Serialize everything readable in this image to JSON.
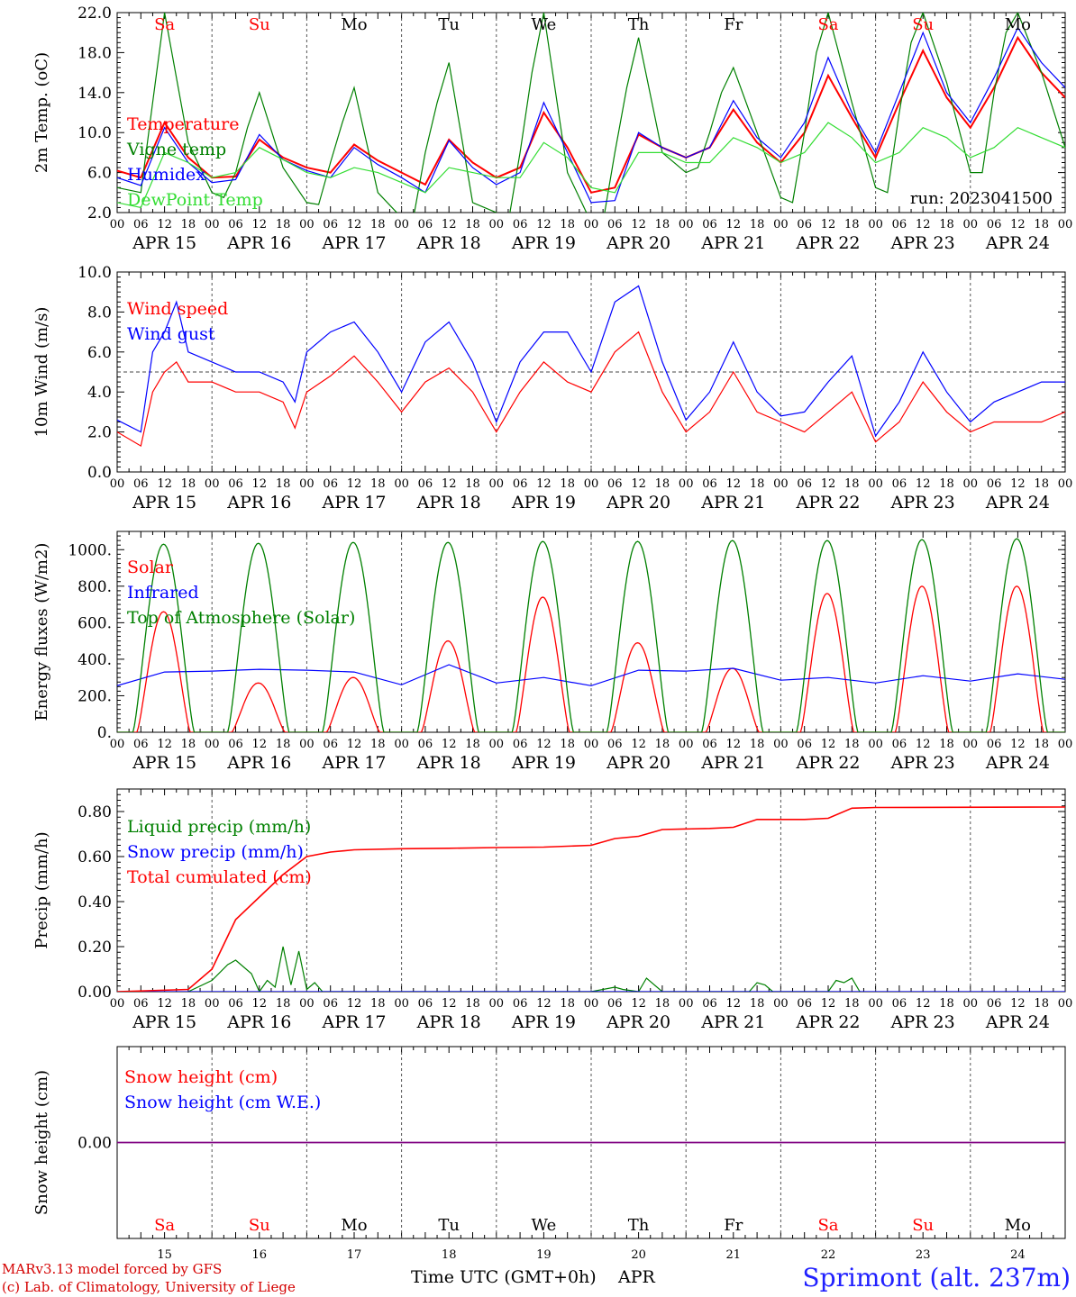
{
  "run_label": "run: 2023041500",
  "footer": {
    "model_line": "MARv3.13 model forced by GFS",
    "copyright_line": "(c) Lab. of Climatology, University of Liege",
    "xaxis_label": "Time UTC (GMT+0h)",
    "month": "APR",
    "station": "Sprimont (alt. 237m)"
  },
  "days": [
    {
      "abbr": "Sa",
      "weekend": true,
      "num": "15",
      "date": "APR 15"
    },
    {
      "abbr": "Su",
      "weekend": true,
      "num": "16",
      "date": "APR 16"
    },
    {
      "abbr": "Mo",
      "weekend": false,
      "num": "17",
      "date": "APR 17"
    },
    {
      "abbr": "Tu",
      "weekend": false,
      "num": "18",
      "date": "APR 18"
    },
    {
      "abbr": "We",
      "weekend": false,
      "num": "19",
      "date": "APR 19"
    },
    {
      "abbr": "Th",
      "weekend": false,
      "num": "20",
      "date": "APR 20"
    },
    {
      "abbr": "Fr",
      "weekend": false,
      "num": "21",
      "date": "APR 21"
    },
    {
      "abbr": "Sa",
      "weekend": true,
      "num": "22",
      "date": "APR 22"
    },
    {
      "abbr": "Su",
      "weekend": true,
      "num": "23",
      "date": "APR 23"
    },
    {
      "abbr": "Mo",
      "weekend": false,
      "num": "24",
      "date": "APR 24"
    }
  ],
  "hour_labels": [
    "00",
    "06",
    "12",
    "18"
  ],
  "colors": {
    "red": "#ff0000",
    "green": "#008000",
    "blue": "#0000ff",
    "lightgreen": "#33dd33",
    "purple": "#800080",
    "station": "#2020ff"
  },
  "chart_data": [
    {
      "type": "line",
      "ylabel": "2m Temp. (oC)",
      "ylim": [
        2,
        22
      ],
      "yticks": [
        "2.0",
        "6.0",
        "10.0",
        "14.0",
        "18.0",
        "22.0"
      ],
      "x_unit": "hours since APR 15 00 UTC",
      "series": [
        {
          "name": "Temperature",
          "color": "#ff0000",
          "x": [
            0,
            6,
            12,
            18,
            24,
            30,
            36,
            42,
            48,
            54,
            60,
            66,
            72,
            78,
            84,
            90,
            96,
            102,
            108,
            114,
            120,
            126,
            132,
            138,
            144,
            150,
            156,
            162,
            168,
            174,
            180,
            186,
            192,
            198,
            204,
            210,
            216,
            222,
            228,
            234,
            240
          ],
          "values": [
            6.2,
            5.5,
            11.0,
            7.5,
            5.5,
            5.6,
            9.3,
            7.5,
            6.5,
            6.0,
            8.8,
            7.2,
            6.0,
            4.8,
            9.3,
            7.0,
            5.5,
            6.5,
            12.0,
            8.5,
            4.0,
            4.5,
            9.8,
            8.5,
            7.5,
            8.5,
            12.3,
            9.0,
            7.0,
            10.0,
            15.7,
            11.5,
            7.5,
            13.0,
            18.2,
            13.5,
            10.5,
            14.5,
            19.5,
            16.0,
            13.5
          ]
        },
        {
          "name": "Vigne temp",
          "color": "#008000",
          "x": [
            0,
            6,
            9,
            12,
            18,
            24,
            27,
            30,
            33,
            36,
            42,
            48,
            51,
            54,
            57,
            60,
            66,
            72,
            75,
            78,
            81,
            84,
            90,
            96,
            99,
            102,
            105,
            108,
            114,
            120,
            123,
            126,
            129,
            132,
            138,
            144,
            147,
            150,
            153,
            156,
            162,
            168,
            171,
            174,
            177,
            180,
            186,
            192,
            195,
            198,
            201,
            204,
            210,
            216,
            219,
            222,
            225,
            228,
            234,
            240
          ],
          "values": [
            4.5,
            4.0,
            13.0,
            22.0,
            9.0,
            4.0,
            3.5,
            6.0,
            10.5,
            14.0,
            6.5,
            3.0,
            2.8,
            7.0,
            11.0,
            14.5,
            4.0,
            1.5,
            1.5,
            8.0,
            13.0,
            17.0,
            3.0,
            2.0,
            1.0,
            8.0,
            16.0,
            22.0,
            6.0,
            1.0,
            1.0,
            8.0,
            14.5,
            19.5,
            8.0,
            6.0,
            6.5,
            10.0,
            14.0,
            16.5,
            10.0,
            3.5,
            3.0,
            10.0,
            18.0,
            22.0,
            13.0,
            4.5,
            4.0,
            12.0,
            19.0,
            22.0,
            15.0,
            6.0,
            6.0,
            14.0,
            20.0,
            22.0,
            16.0,
            8.5
          ]
        },
        {
          "name": "Humidex",
          "color": "#0000ff",
          "x": [
            0,
            6,
            12,
            18,
            24,
            30,
            36,
            42,
            48,
            54,
            60,
            66,
            72,
            78,
            84,
            90,
            96,
            102,
            108,
            114,
            120,
            126,
            132,
            138,
            144,
            150,
            156,
            162,
            168,
            174,
            180,
            186,
            192,
            198,
            204,
            210,
            216,
            222,
            228,
            234,
            240
          ],
          "values": [
            5.5,
            4.7,
            10.5,
            7.0,
            5.0,
            5.3,
            9.8,
            7.3,
            6.2,
            5.5,
            8.5,
            6.8,
            5.5,
            4.0,
            9.2,
            6.5,
            4.8,
            6.0,
            13.0,
            8.0,
            3.0,
            3.2,
            10.0,
            8.5,
            7.5,
            8.5,
            13.2,
            9.5,
            7.5,
            11.0,
            17.5,
            12.0,
            8.0,
            14.0,
            20.0,
            14.0,
            11.0,
            15.5,
            20.5,
            17.0,
            14.5
          ]
        },
        {
          "name": "DewPoint Temp",
          "color": "#33dd33",
          "x": [
            0,
            6,
            12,
            18,
            24,
            30,
            36,
            42,
            48,
            54,
            60,
            66,
            72,
            78,
            84,
            90,
            96,
            102,
            108,
            114,
            120,
            126,
            132,
            138,
            144,
            150,
            156,
            162,
            168,
            174,
            180,
            186,
            192,
            198,
            204,
            210,
            216,
            222,
            228,
            234,
            240
          ],
          "values": [
            3.0,
            2.5,
            8.0,
            7.0,
            5.5,
            6.0,
            8.5,
            7.3,
            6.0,
            5.5,
            6.5,
            6.0,
            5.0,
            4.0,
            6.5,
            6.0,
            5.5,
            5.5,
            9.0,
            7.5,
            4.5,
            4.0,
            8.0,
            8.0,
            7.0,
            7.0,
            9.5,
            8.5,
            7.0,
            8.0,
            11.0,
            9.5,
            7.0,
            8.0,
            10.5,
            9.5,
            7.5,
            8.5,
            10.5,
            9.5,
            8.5
          ]
        }
      ]
    },
    {
      "type": "line",
      "ylabel": "10m Wind (m/s)",
      "ylim": [
        0,
        10
      ],
      "yticks": [
        "0.0",
        "2.0",
        "4.0",
        "6.0",
        "8.0",
        "10.0"
      ],
      "reference_line": 5.0,
      "series": [
        {
          "name": "Wind speed",
          "color": "#ff0000",
          "x": [
            0,
            6,
            9,
            12,
            15,
            18,
            24,
            30,
            36,
            42,
            45,
            48,
            54,
            60,
            66,
            72,
            78,
            84,
            90,
            96,
            102,
            108,
            114,
            120,
            126,
            132,
            138,
            144,
            150,
            156,
            162,
            168,
            174,
            180,
            186,
            192,
            198,
            204,
            210,
            216,
            222,
            228,
            234,
            240
          ],
          "values": [
            2.0,
            1.3,
            4.0,
            5.0,
            5.5,
            4.5,
            4.5,
            4.0,
            4.0,
            3.5,
            2.2,
            4.0,
            4.8,
            5.8,
            4.5,
            3.0,
            4.5,
            5.2,
            4.0,
            2.0,
            4.0,
            5.5,
            4.5,
            4.0,
            6.0,
            7.0,
            4.0,
            2.0,
            3.0,
            5.0,
            3.0,
            2.5,
            2.0,
            3.0,
            4.0,
            1.5,
            2.5,
            4.5,
            3.0,
            2.0,
            2.5,
            2.5,
            2.5,
            3.0
          ]
        },
        {
          "name": "Wind gust",
          "color": "#0000ff",
          "x": [
            0,
            6,
            9,
            12,
            15,
            18,
            24,
            30,
            36,
            42,
            45,
            48,
            54,
            60,
            66,
            72,
            78,
            84,
            90,
            96,
            102,
            108,
            114,
            120,
            126,
            132,
            138,
            144,
            150,
            156,
            162,
            168,
            174,
            180,
            186,
            192,
            198,
            204,
            210,
            216,
            222,
            228,
            234,
            240
          ],
          "values": [
            2.6,
            2.0,
            6.0,
            7.0,
            8.5,
            6.0,
            5.5,
            5.0,
            5.0,
            4.5,
            3.5,
            6.0,
            7.0,
            7.5,
            6.0,
            4.0,
            6.5,
            7.5,
            5.5,
            2.5,
            5.5,
            7.0,
            7.0,
            5.0,
            8.5,
            9.3,
            5.5,
            2.6,
            4.0,
            6.5,
            4.0,
            2.8,
            3.0,
            4.5,
            5.8,
            1.8,
            3.5,
            6.0,
            4.0,
            2.5,
            3.5,
            4.0,
            4.5,
            4.5
          ]
        }
      ]
    },
    {
      "type": "line",
      "ylabel": "Energy fluxes (W/m2)",
      "ylim": [
        0,
        1100
      ],
      "yticks": [
        "0.",
        "200.",
        "400.",
        "600.",
        "800.",
        "1000."
      ],
      "series": [
        {
          "name": "Solar",
          "color": "#ff0000",
          "peaks": [
            660,
            270,
            300,
            500,
            740,
            490,
            350,
            760,
            800,
            800
          ]
        },
        {
          "name": "Infrared",
          "color": "#0000ff",
          "x": [
            0,
            12,
            24,
            36,
            48,
            60,
            72,
            84,
            96,
            108,
            120,
            132,
            144,
            156,
            168,
            180,
            192,
            204,
            216,
            228,
            240
          ],
          "values": [
            255,
            330,
            335,
            345,
            340,
            330,
            260,
            370,
            270,
            300,
            255,
            340,
            335,
            350,
            285,
            300,
            270,
            310,
            280,
            320,
            290
          ]
        },
        {
          "name": "Top of Atmosphere (Solar)",
          "color": "#008000",
          "peaks": [
            1030,
            1035,
            1040,
            1040,
            1045,
            1045,
            1050,
            1050,
            1055,
            1060
          ]
        }
      ]
    },
    {
      "type": "line",
      "ylabel": "Precip (mm/h)",
      "ylim": [
        0,
        0.9
      ],
      "yticks": [
        "0.00",
        "0.20",
        "0.40",
        "0.60",
        "0.80"
      ],
      "series": [
        {
          "name": "Liquid precip (mm/h)",
          "color": "#008000",
          "x": [
            18,
            24,
            28,
            30,
            34,
            36,
            38,
            40,
            42,
            44,
            46,
            48,
            50,
            52,
            60,
            120,
            126,
            128,
            132,
            134,
            138,
            144,
            160,
            162,
            164,
            166,
            172,
            180,
            182,
            184,
            186,
            188
          ],
          "values": [
            0.0,
            0.05,
            0.12,
            0.14,
            0.08,
            0.0,
            0.05,
            0.02,
            0.2,
            0.03,
            0.18,
            0.01,
            0.04,
            0.0,
            0.0,
            0.0,
            0.02,
            0.01,
            0.0,
            0.06,
            0.0,
            0.0,
            0.0,
            0.04,
            0.03,
            0.0,
            0.0,
            0.0,
            0.05,
            0.04,
            0.06,
            0.0
          ]
        },
        {
          "name": "Snow precip (mm/h)",
          "color": "#0000ff",
          "x": [
            0,
            240
          ],
          "values": [
            0,
            0
          ]
        },
        {
          "name": "Total cumulated (cm)",
          "color": "#ff0000",
          "x": [
            0,
            18,
            24,
            30,
            36,
            42,
            48,
            54,
            60,
            72,
            84,
            96,
            108,
            120,
            126,
            132,
            138,
            150,
            156,
            162,
            174,
            180,
            186,
            192,
            240
          ],
          "values": [
            0.0,
            0.01,
            0.1,
            0.32,
            0.42,
            0.52,
            0.6,
            0.62,
            0.63,
            0.635,
            0.637,
            0.64,
            0.642,
            0.65,
            0.68,
            0.69,
            0.72,
            0.725,
            0.73,
            0.765,
            0.765,
            0.77,
            0.815,
            0.818,
            0.82
          ]
        }
      ]
    },
    {
      "type": "line",
      "ylabel": "Snow height (cm)",
      "ytick": "0.00",
      "series": [
        {
          "name": "Snow height (cm)",
          "color": "#ff0000",
          "x": [
            0,
            240
          ],
          "values": [
            0,
            0
          ]
        },
        {
          "name": "Snow height (cm W.E.)",
          "color": "#0000ff",
          "x": [
            0,
            240
          ],
          "values": [
            0,
            0
          ]
        }
      ]
    }
  ]
}
